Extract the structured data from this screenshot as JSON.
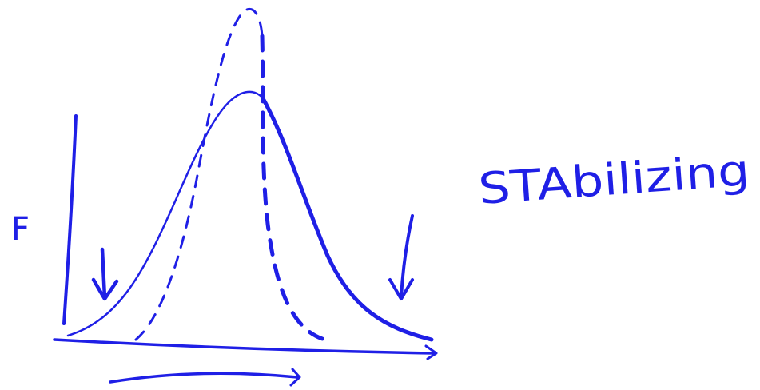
{
  "labels": {
    "y_axis": "F",
    "annotation": "STAbilizing"
  }
}
